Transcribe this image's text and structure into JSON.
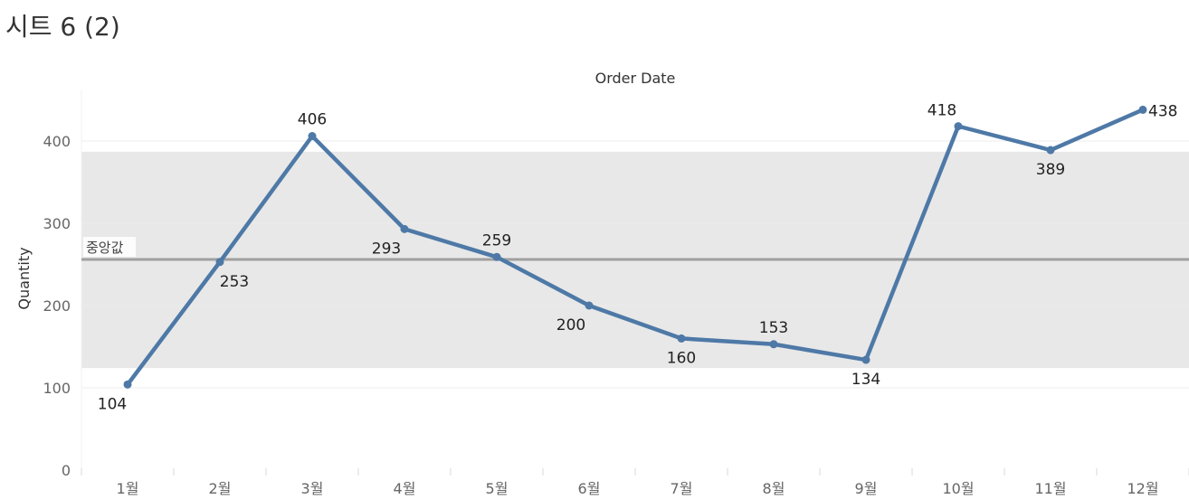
{
  "sheet": {
    "title": "시트 6 (2)"
  },
  "colors": {
    "series": "#4e79a7",
    "band": "#e8e8e8",
    "reference_line": "#a0a0a0",
    "grid": "#ececec"
  },
  "chart_data": {
    "type": "line",
    "title": "",
    "column_header": "Order Date",
    "xlabel": "",
    "ylabel": "Quantity",
    "categories": [
      "1월",
      "2월",
      "3월",
      "4월",
      "5월",
      "6월",
      "7월",
      "8월",
      "9월",
      "10월",
      "11월",
      "12월"
    ],
    "series": [
      {
        "values": [
          104,
          253,
          406,
          293,
          259,
          200,
          160,
          153,
          134,
          418,
          389,
          438
        ]
      }
    ],
    "data_labels": [
      "104",
      "253",
      "406",
      "293",
      "259",
      "200",
      "160",
      "153",
      "134",
      "418",
      "389",
      "438"
    ],
    "ylim": [
      0,
      450
    ],
    "yticks": [
      0,
      100,
      200,
      300,
      400
    ],
    "ytick_labels": [
      "0",
      "100",
      "200",
      "300",
      "400"
    ],
    "grid": true,
    "reference_line": {
      "label": "중앙값",
      "value": 256
    },
    "reference_band": {
      "from": 124,
      "to": 387
    }
  }
}
